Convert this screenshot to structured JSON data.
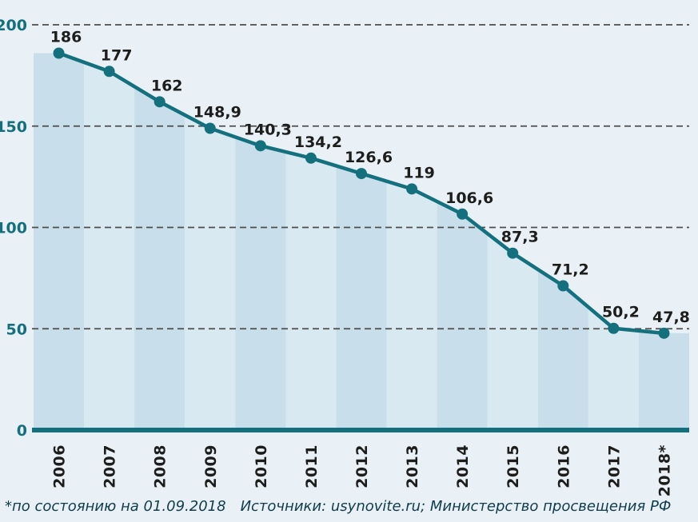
{
  "chart_data": {
    "type": "area",
    "title": "",
    "xlabel": "",
    "ylabel": "",
    "categories": [
      "2006",
      "2007",
      "2008",
      "2009",
      "2010",
      "2011",
      "2012",
      "2013",
      "2014",
      "2015",
      "2016",
      "2017",
      "2018*"
    ],
    "values": [
      186,
      177,
      162,
      148.9,
      140.3,
      134.2,
      126.6,
      119,
      106.6,
      87.3,
      71.2,
      50.2,
      47.8
    ],
    "value_labels": [
      "186",
      "177",
      "162",
      "148,9",
      "140,3",
      "134,2",
      "126,6",
      "119",
      "106,6",
      "87,3",
      "71,2",
      "50,2",
      "47,8"
    ],
    "ylim": [
      0,
      200
    ],
    "yticks": [
      0,
      50,
      100,
      150,
      200
    ],
    "grid": "horizontal-dashed",
    "legend": "none",
    "colors": {
      "line": "#15707e",
      "band_dark": "#c8deea",
      "band_light": "#d9e9f2",
      "background": "#e9f1f7",
      "grid": "#4d4d4d",
      "value_label": "#1d1d1b",
      "axis_label": "#15707e"
    }
  },
  "footer": {
    "note": "*по состоянию на 01.09.2018",
    "sources": "Источники: usynovite.ru; Министерство просвещения РФ"
  }
}
